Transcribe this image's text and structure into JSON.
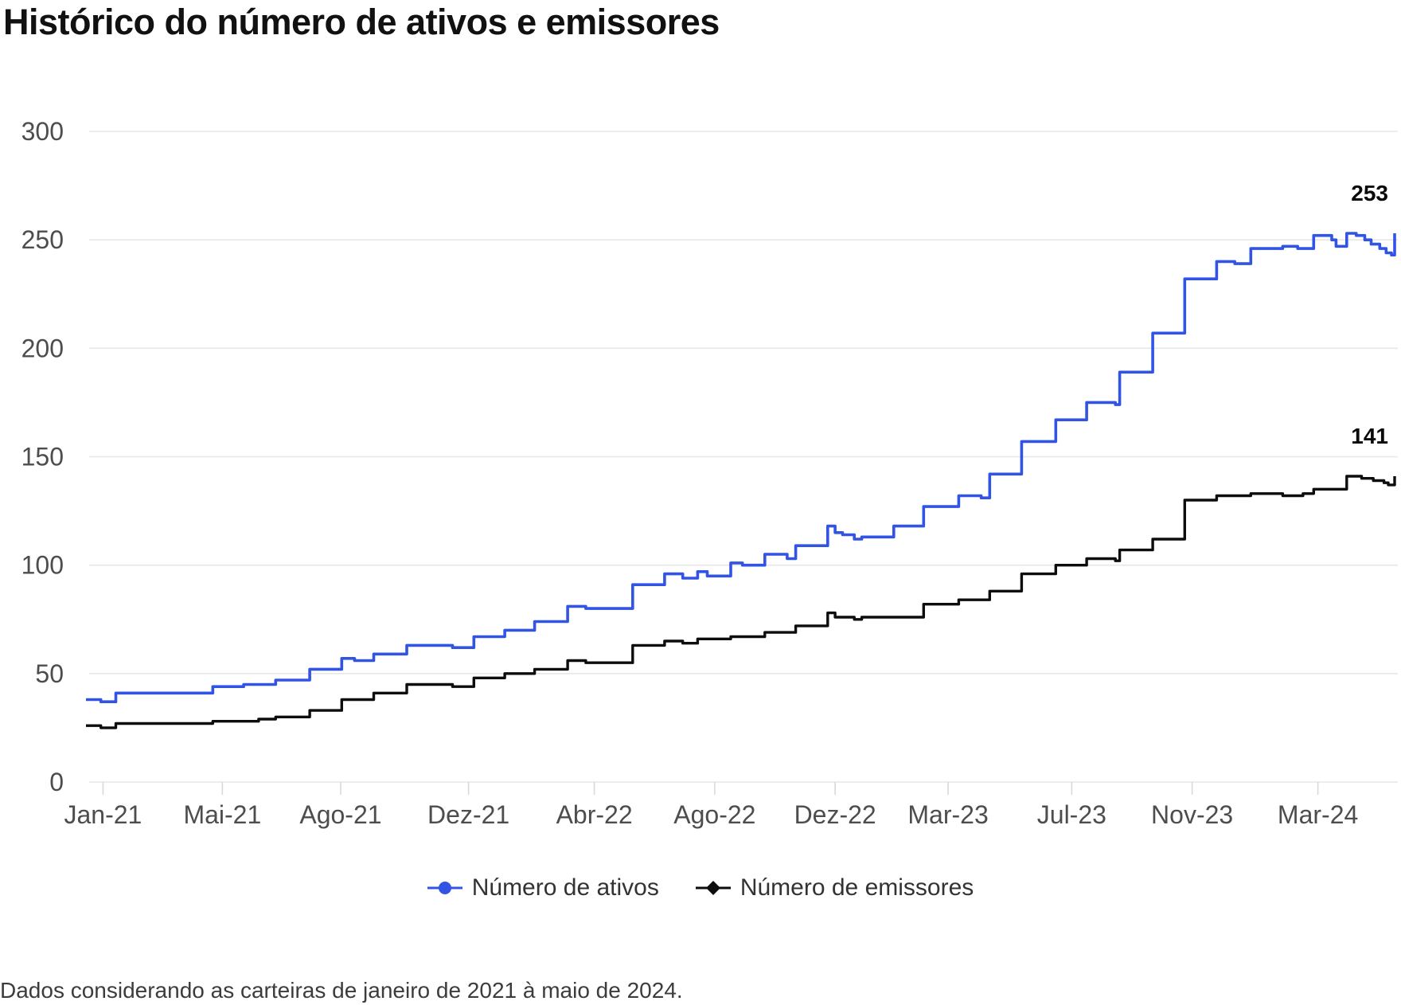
{
  "title": "Histórico do número de ativos e emissores",
  "footer": "Dados considerando as carteiras de janeiro de 2021 à maio de 2024.",
  "chart_data": {
    "type": "line",
    "step": true,
    "grid": true,
    "legend_position": "bottom-center",
    "x_domain": {
      "start": "2021-01-04",
      "end": "2024-05-16"
    },
    "y_axis": {
      "min": 0,
      "max": 300,
      "tick_step": 50,
      "tick_labels": [
        "0",
        "50",
        "100",
        "150",
        "200",
        "250",
        "300"
      ]
    },
    "x_ticks": [
      {
        "label": "Jan-21",
        "date": "2021-01-20"
      },
      {
        "label": "Mai-21",
        "date": "2021-05-12"
      },
      {
        "label": "Ago-21",
        "date": "2021-08-31"
      },
      {
        "label": "Dez-21",
        "date": "2021-12-29"
      },
      {
        "label": "Abr-22",
        "date": "2022-04-26"
      },
      {
        "label": "Ago-22",
        "date": "2022-08-17"
      },
      {
        "label": "Dez-22",
        "date": "2022-12-08"
      },
      {
        "label": "Mar-23",
        "date": "2023-03-24"
      },
      {
        "label": "Jul-23",
        "date": "2023-07-18"
      },
      {
        "label": "Nov-23",
        "date": "2023-11-08"
      },
      {
        "label": "Mar-24",
        "date": "2024-03-05"
      }
    ],
    "series": [
      {
        "name": "Número de ativos",
        "color": "#3254e4",
        "marker": "circle",
        "line_width": 3.6,
        "end_label": "253",
        "points": [
          [
            "2021-01-04",
            38
          ],
          [
            "2021-01-18",
            37
          ],
          [
            "2021-02-01",
            41
          ],
          [
            "2021-05-03",
            44
          ],
          [
            "2021-06-01",
            45
          ],
          [
            "2021-07-01",
            47
          ],
          [
            "2021-08-02",
            52
          ],
          [
            "2021-09-01",
            57
          ],
          [
            "2021-09-13",
            56
          ],
          [
            "2021-10-01",
            59
          ],
          [
            "2021-11-01",
            63
          ],
          [
            "2021-12-14",
            62
          ],
          [
            "2022-01-03",
            67
          ],
          [
            "2022-02-01",
            70
          ],
          [
            "2022-03-01",
            74
          ],
          [
            "2022-04-01",
            81
          ],
          [
            "2022-04-18",
            80
          ],
          [
            "2022-06-01",
            91
          ],
          [
            "2022-07-01",
            96
          ],
          [
            "2022-07-18",
            94
          ],
          [
            "2022-08-01",
            97
          ],
          [
            "2022-08-10",
            95
          ],
          [
            "2022-09-01",
            101
          ],
          [
            "2022-09-12",
            100
          ],
          [
            "2022-10-03",
            105
          ],
          [
            "2022-10-24",
            103
          ],
          [
            "2022-11-01",
            109
          ],
          [
            "2022-12-01",
            118
          ],
          [
            "2022-12-08",
            115
          ],
          [
            "2022-12-15",
            114
          ],
          [
            "2022-12-26",
            112
          ],
          [
            "2023-01-02",
            113
          ],
          [
            "2023-02-01",
            118
          ],
          [
            "2023-03-01",
            127
          ],
          [
            "2023-04-03",
            132
          ],
          [
            "2023-04-24",
            131
          ],
          [
            "2023-05-02",
            142
          ],
          [
            "2023-06-01",
            157
          ],
          [
            "2023-07-03",
            167
          ],
          [
            "2023-08-01",
            175
          ],
          [
            "2023-08-28",
            174
          ],
          [
            "2023-09-01",
            189
          ],
          [
            "2023-10-02",
            207
          ],
          [
            "2023-11-01",
            232
          ],
          [
            "2023-12-01",
            240
          ],
          [
            "2023-12-18",
            239
          ],
          [
            "2024-01-02",
            246
          ],
          [
            "2024-02-01",
            247
          ],
          [
            "2024-02-15",
            246
          ],
          [
            "2024-03-01",
            252
          ],
          [
            "2024-03-18",
            250
          ],
          [
            "2024-03-22",
            247
          ],
          [
            "2024-04-01",
            253
          ],
          [
            "2024-04-10",
            252
          ],
          [
            "2024-04-18",
            250
          ],
          [
            "2024-04-24",
            248
          ],
          [
            "2024-05-02",
            246
          ],
          [
            "2024-05-08",
            244
          ],
          [
            "2024-05-13",
            243
          ],
          [
            "2024-05-16",
            253
          ]
        ]
      },
      {
        "name": "Número de emissores",
        "color": "#0d0d0d",
        "marker": "diamond",
        "line_width": 3.4,
        "end_label": "141",
        "points": [
          [
            "2021-01-04",
            26
          ],
          [
            "2021-01-18",
            25
          ],
          [
            "2021-02-01",
            27
          ],
          [
            "2021-05-03",
            28
          ],
          [
            "2021-06-15",
            29
          ],
          [
            "2021-07-01",
            30
          ],
          [
            "2021-08-02",
            33
          ],
          [
            "2021-09-01",
            38
          ],
          [
            "2021-10-01",
            41
          ],
          [
            "2021-11-01",
            45
          ],
          [
            "2021-12-14",
            44
          ],
          [
            "2022-01-03",
            48
          ],
          [
            "2022-02-01",
            50
          ],
          [
            "2022-03-01",
            52
          ],
          [
            "2022-04-01",
            56
          ],
          [
            "2022-04-18",
            55
          ],
          [
            "2022-06-01",
            63
          ],
          [
            "2022-07-01",
            65
          ],
          [
            "2022-07-18",
            64
          ],
          [
            "2022-08-01",
            66
          ],
          [
            "2022-09-01",
            67
          ],
          [
            "2022-10-03",
            69
          ],
          [
            "2022-11-01",
            72
          ],
          [
            "2022-12-01",
            78
          ],
          [
            "2022-12-08",
            76
          ],
          [
            "2022-12-26",
            75
          ],
          [
            "2023-01-02",
            76
          ],
          [
            "2023-03-01",
            82
          ],
          [
            "2023-04-03",
            84
          ],
          [
            "2023-05-02",
            88
          ],
          [
            "2023-06-01",
            96
          ],
          [
            "2023-07-03",
            100
          ],
          [
            "2023-08-01",
            103
          ],
          [
            "2023-08-28",
            102
          ],
          [
            "2023-09-01",
            107
          ],
          [
            "2023-10-02",
            112
          ],
          [
            "2023-11-01",
            130
          ],
          [
            "2023-12-01",
            132
          ],
          [
            "2024-01-02",
            133
          ],
          [
            "2024-02-01",
            132
          ],
          [
            "2024-02-20",
            133
          ],
          [
            "2024-03-01",
            135
          ],
          [
            "2024-04-01",
            141
          ],
          [
            "2024-04-15",
            140
          ],
          [
            "2024-04-26",
            139
          ],
          [
            "2024-05-06",
            138
          ],
          [
            "2024-05-10",
            137
          ],
          [
            "2024-05-16",
            141
          ]
        ]
      }
    ]
  }
}
